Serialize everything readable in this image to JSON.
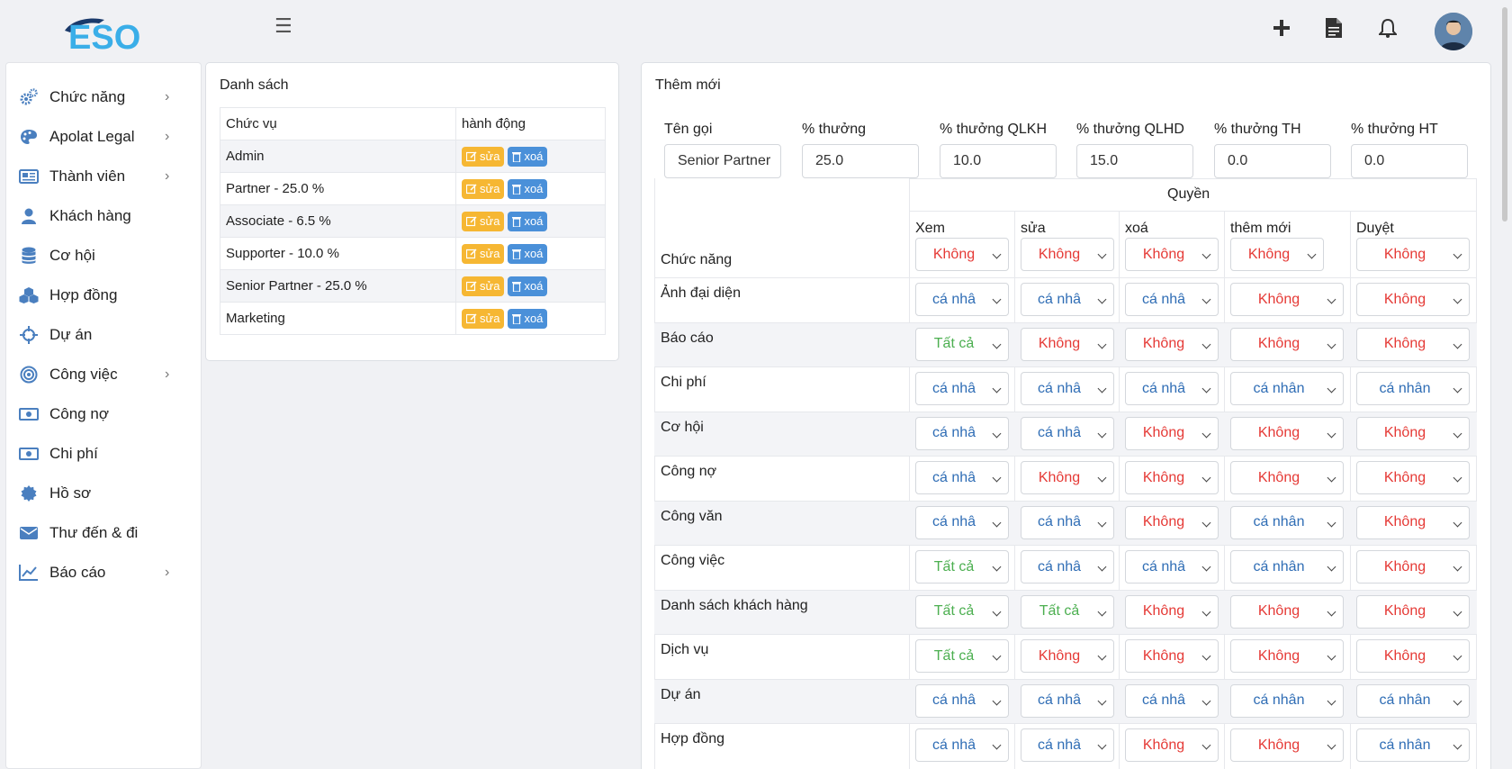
{
  "brand": {
    "logo_text": "ESO"
  },
  "header": {
    "menu_icon": "hamburger-icon",
    "actions": [
      "plus-icon",
      "document-icon",
      "bell-icon"
    ]
  },
  "sidebar": {
    "items": [
      {
        "label": "Chức năng",
        "icon": "gears-icon",
        "chevron": true
      },
      {
        "label": "Apolat Legal",
        "icon": "palette-icon",
        "chevron": true
      },
      {
        "label": "Thành viên",
        "icon": "newspaper-icon",
        "chevron": true
      },
      {
        "label": "Khách hàng",
        "icon": "user-icon",
        "chevron": false
      },
      {
        "label": "Cơ hội",
        "icon": "database-icon",
        "chevron": false
      },
      {
        "label": "Hợp đồng",
        "icon": "cubes-icon",
        "chevron": false
      },
      {
        "label": "Dự án",
        "icon": "crosshairs-icon",
        "chevron": false
      },
      {
        "label": "Công việc",
        "icon": "bullseye-icon",
        "chevron": true
      },
      {
        "label": "Công nợ",
        "icon": "money-bill-icon",
        "chevron": false
      },
      {
        "label": "Chi phí",
        "icon": "money-bill-icon",
        "chevron": false
      },
      {
        "label": "Hồ sơ",
        "icon": "certificate-icon",
        "chevron": false
      },
      {
        "label": "Thư đến & đi",
        "icon": "envelope-icon",
        "chevron": false
      },
      {
        "label": "Báo cáo",
        "icon": "line-chart-icon",
        "chevron": true
      }
    ]
  },
  "list_panel": {
    "title": "Danh sách",
    "columns": [
      "Chức vụ",
      "hành động"
    ],
    "edit_label": "sửa",
    "delete_label": "xoá",
    "rows": [
      "Admin",
      "Partner - 25.0 %",
      "Associate - 6.5 %",
      "Supporter - 10.0 %",
      "Senior Partner - 25.0 %",
      "Marketing"
    ]
  },
  "form_panel": {
    "title": "Thêm mới",
    "fields": [
      {
        "label": "Tên gọi",
        "value": "Senior Partner"
      },
      {
        "label": "% thưởng",
        "value": "25.0"
      },
      {
        "label": "% thưởng QLKH",
        "value": "10.0"
      },
      {
        "label": "% thưởng QLHD",
        "value": "15.0"
      },
      {
        "label": "% thưởng TH",
        "value": "0.0"
      },
      {
        "label": "% thưởng HT",
        "value": "0.0"
      }
    ],
    "permissions": {
      "group_header": "Quyền",
      "row_header": "Chức năng",
      "columns": [
        "Xem",
        "sửa",
        "xoá",
        "thêm mới",
        "Duyệt"
      ],
      "header_values": [
        "Không",
        "Không",
        "Không",
        "Không",
        "Không"
      ],
      "rows": [
        {
          "label": "Ảnh đại diện",
          "values": [
            "cá nhâ",
            "cá nhâ",
            "cá nhâ",
            "Không",
            "Không"
          ]
        },
        {
          "label": "Báo cáo",
          "values": [
            "Tất cả",
            "Không",
            "Không",
            "Không",
            "Không"
          ]
        },
        {
          "label": "Chi phí",
          "values": [
            "cá nhâ",
            "cá nhâ",
            "cá nhâ",
            "cá nhân",
            "cá nhân"
          ]
        },
        {
          "label": "Cơ hội",
          "values": [
            "cá nhâ",
            "cá nhâ",
            "Không",
            "Không",
            "Không"
          ]
        },
        {
          "label": "Công nợ",
          "values": [
            "cá nhâ",
            "Không",
            "Không",
            "Không",
            "Không"
          ]
        },
        {
          "label": "Công văn",
          "values": [
            "cá nhâ",
            "cá nhâ",
            "Không",
            "cá nhân",
            "Không"
          ]
        },
        {
          "label": "Công việc",
          "values": [
            "Tất cả",
            "cá nhâ",
            "cá nhâ",
            "cá nhân",
            "Không"
          ]
        },
        {
          "label": "Danh sách khách hàng",
          "values": [
            "Tất cả",
            "Tất cả",
            "Không",
            "Không",
            "Không"
          ]
        },
        {
          "label": "Dịch vụ",
          "values": [
            "Tất cả",
            "Không",
            "Không",
            "Không",
            "Không"
          ]
        },
        {
          "label": "Dự án",
          "values": [
            "cá nhâ",
            "cá nhâ",
            "cá nhâ",
            "cá nhân",
            "cá nhân"
          ]
        },
        {
          "label": "Hợp đồng",
          "values": [
            "cá nhâ",
            "cá nhâ",
            "Không",
            "Không",
            "cá nhân"
          ]
        }
      ]
    }
  }
}
